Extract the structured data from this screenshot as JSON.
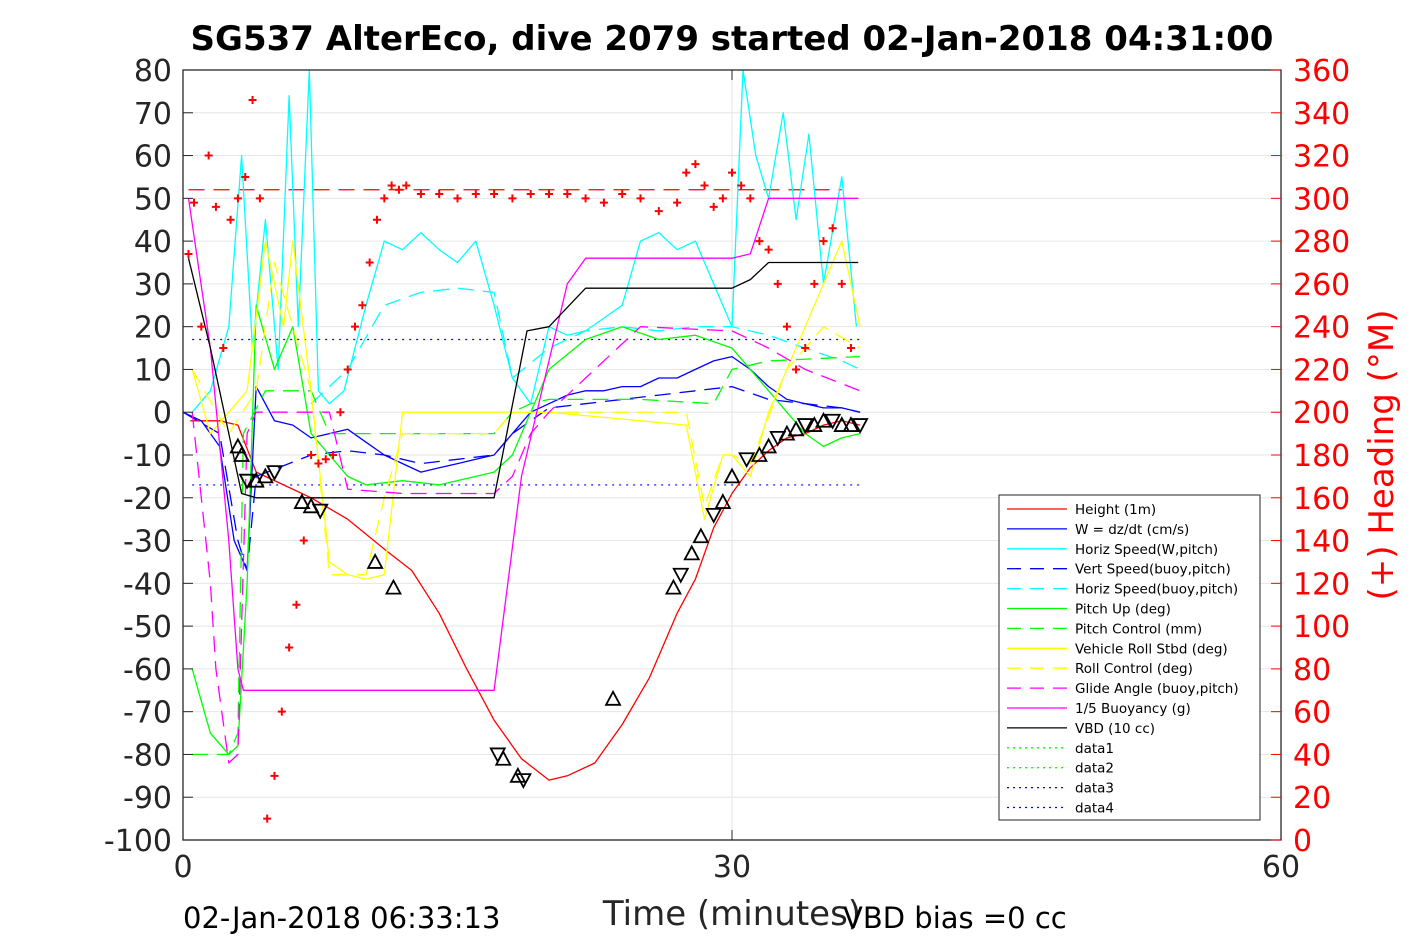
{
  "chart_data": {
    "type": "line",
    "title": "SG537 AlterEco, dive 2079 started 02-Jan-2018 04:31:00",
    "xlabel": "Time (minutes)",
    "ylabel_right": "(+) Heading (°M)",
    "xlim": [
      0,
      60
    ],
    "ylim_left": [
      -100,
      80
    ],
    "ylim_right": [
      0,
      360
    ],
    "x_ticks": [
      "0",
      "30",
      "60"
    ],
    "y_ticks_left": [
      "80",
      "70",
      "60",
      "50",
      "40",
      "30",
      "20",
      "10",
      "0",
      "-10",
      "-20",
      "-30",
      "-40",
      "-50",
      "-60",
      "-70",
      "-80",
      "-90",
      "-100"
    ],
    "y_ticks_right": [
      "360",
      "340",
      "320",
      "300",
      "280",
      "260",
      "240",
      "220",
      "200",
      "180",
      "160",
      "140",
      "120",
      "100",
      "80",
      "60",
      "40",
      "20",
      "0"
    ],
    "footer_left": "02-Jan-2018 06:33:13",
    "footer_right": "VBD bias =0 cc",
    "legend_position": "lower-right inside",
    "colors": {
      "red": "#ff0000",
      "blue": "#0000ff",
      "cyan": "#00ffff",
      "green": "#00ff00",
      "yellow": "#ffff00",
      "magenta": "#ff00ff",
      "black": "#000000",
      "heading_axis": "#ff0000"
    },
    "legend": [
      {
        "label": "Height (1m)",
        "color": "#ff0000",
        "style": "solid"
      },
      {
        "label": "W = dz/dt (cm/s)",
        "color": "#0000ff",
        "style": "solid"
      },
      {
        "label": "Horiz Speed(W,pitch)",
        "color": "#00ffff",
        "style": "solid"
      },
      {
        "label": "Vert Speed(buoy,pitch)",
        "color": "#0000ff",
        "style": "dashed"
      },
      {
        "label": "Horiz Speed(buoy,pitch)",
        "color": "#00ffff",
        "style": "dashed"
      },
      {
        "label": "Pitch Up (deg)",
        "color": "#00ff00",
        "style": "solid"
      },
      {
        "label": "Pitch Control (mm)",
        "color": "#00ff00",
        "style": "dashed"
      },
      {
        "label": "Vehicle Roll Stbd (deg)",
        "color": "#ffff00",
        "style": "solid"
      },
      {
        "label": "Roll Control (deg)",
        "color": "#ffff00",
        "style": "dashed"
      },
      {
        "label": "Glide Angle (buoy,pitch)",
        "color": "#ff00ff",
        "style": "dashed"
      },
      {
        "label": "1/5 Buoyancy (g)",
        "color": "#ff00ff",
        "style": "solid"
      },
      {
        "label": "VBD (10 cc)",
        "color": "#000000",
        "style": "solid"
      },
      {
        "label": "data1",
        "color": "#00ff00",
        "style": "dotted"
      },
      {
        "label": "data2",
        "color": "#00ff00",
        "style": "dotted"
      },
      {
        "label": "data3",
        "color": "#0000ff",
        "style": "dotted"
      },
      {
        "label": "data4",
        "color": "#0000ff",
        "style": "dotted"
      }
    ],
    "series": [
      {
        "name": "Height (1m)",
        "x": [
          0.4,
          2.0,
          3.0,
          4.0,
          5.5,
          7.0,
          9.0,
          11.0,
          12.5,
          14.0,
          15.5,
          17.0,
          18.5,
          20.0,
          21.0,
          22.5,
          24.0,
          25.5,
          27.0,
          28.0,
          29.0,
          30.0,
          31.0,
          32.0,
          33.0,
          34.0,
          35.0,
          36.0,
          37.0
        ],
        "y": [
          -2,
          -2,
          -3,
          -14,
          -17,
          -20,
          -25,
          -32,
          -37,
          -47,
          -60,
          -72,
          -81,
          -86,
          -85,
          -82,
          -73,
          -62,
          -47,
          -39,
          -27,
          -19,
          -13,
          -9,
          -6,
          -5,
          -3,
          -2,
          -3
        ]
      },
      {
        "name": "W = dz/dt (cm/s)",
        "x": [
          0,
          1,
          2,
          2.8,
          3.5,
          4,
          5,
          6,
          7,
          8,
          9,
          10,
          11,
          12,
          13,
          14,
          15,
          16,
          17,
          18,
          19,
          20,
          21,
          22,
          23,
          24,
          25,
          26,
          27,
          28,
          29,
          30,
          31,
          32,
          33,
          34,
          35,
          36,
          37
        ],
        "y": [
          0,
          -2,
          -8,
          -30,
          -37,
          6,
          -2,
          -3,
          -6,
          -5,
          -4,
          -7,
          -10,
          -12,
          -14,
          -13,
          -12,
          -11,
          -10,
          -5,
          0,
          2,
          4,
          5,
          5,
          6,
          6,
          8,
          8,
          10,
          12,
          13,
          10,
          6,
          3,
          2,
          1,
          1,
          0
        ]
      },
      {
        "name": "Horiz Speed(W,pitch)",
        "x": [
          0.5,
          1.5,
          2.5,
          3.2,
          3.8,
          4.5,
          5.2,
          5.8,
          6.3,
          6.9,
          7.4,
          8.0,
          8.8,
          10.0,
          11.0,
          12.0,
          13.0,
          14.0,
          15.0,
          16.0,
          17.0,
          18.0,
          19.0,
          20.0,
          21.0,
          22.0,
          23.0,
          24.0,
          25.0,
          26.0,
          27.0,
          28.0,
          29.0,
          30.0,
          30.6,
          31.3,
          32.0,
          32.8,
          33.5,
          34.2,
          35.0,
          36.0,
          36.8
        ],
        "y": [
          0,
          5,
          20,
          60,
          15,
          45,
          10,
          74,
          20,
          80,
          5,
          2,
          5,
          25,
          40,
          38,
          42,
          38,
          35,
          40,
          25,
          8,
          2,
          20,
          18,
          19,
          22,
          25,
          40,
          42,
          38,
          40,
          30,
          20,
          80,
          60,
          50,
          70,
          45,
          65,
          30,
          55,
          20
        ]
      },
      {
        "name": "Vert Speed(buoy,pitch)",
        "x": [
          0,
          2,
          3,
          3.5,
          4,
          7,
          9,
          11,
          13,
          15,
          17,
          18,
          20,
          22,
          24,
          26,
          28,
          30,
          32,
          34,
          36,
          37
        ],
        "y": [
          0,
          -5,
          -30,
          -37,
          -15,
          -10,
          -9,
          -10,
          -12,
          -11,
          -10,
          -5,
          1,
          2,
          3,
          4,
          5,
          6,
          3,
          2,
          1,
          0
        ]
      },
      {
        "name": "Horiz Speed(buoy,pitch)",
        "x": [
          7,
          9,
          11,
          13,
          15,
          17,
          18,
          20,
          22,
          24,
          26,
          28,
          30,
          32,
          34,
          36,
          37
        ],
        "y": [
          2,
          10,
          25,
          28,
          29,
          28,
          8,
          15,
          19,
          20,
          19,
          20,
          20,
          18,
          15,
          12,
          10
        ]
      },
      {
        "name": "Pitch Up (deg)",
        "x": [
          0.5,
          1.5,
          2.5,
          3.0,
          3.5,
          4.0,
          5.0,
          6.0,
          7.0,
          8.0,
          9.0,
          10.0,
          12.0,
          14.0,
          16.0,
          17.0,
          18.0,
          19.0,
          20.0,
          22.0,
          24.0,
          26.0,
          28.0,
          30.0,
          31.0,
          32.0,
          33.0,
          34.0,
          35.0,
          36.0,
          37.0
        ],
        "y": [
          -60,
          -75,
          -80,
          -78,
          -40,
          25,
          10,
          20,
          -5,
          -10,
          -15,
          -17,
          -16,
          -17,
          -15,
          -14,
          -10,
          0,
          10,
          17,
          20,
          17,
          18,
          15,
          10,
          5,
          0,
          -5,
          -8,
          -6,
          -5
        ]
      },
      {
        "name": "Pitch Control (mm)",
        "x": [
          0.5,
          2.5,
          3.0,
          3.3,
          4.5,
          7.0,
          8.0,
          12.0,
          17.0,
          18.0,
          19.0,
          20.0,
          25.0,
          29.0,
          30.0,
          32.0,
          37.0
        ],
        "y": [
          -80,
          -80,
          -75,
          -5,
          5,
          5,
          -5,
          -5,
          -5,
          0,
          2,
          3,
          3,
          2,
          10,
          12,
          13
        ]
      },
      {
        "name": "Vehicle Roll Stbd (deg)",
        "x": [
          0.5,
          1.5,
          2.5,
          3.5,
          4.5,
          5.5,
          6.0,
          7.0,
          8.0,
          9.0,
          10.0,
          11.0,
          12.0,
          15.0,
          17.0,
          18.0,
          20.0,
          25.0,
          27.5,
          28.5,
          29.5,
          30.0,
          31.0,
          32.0,
          33.0,
          34.0,
          35.0,
          36.0,
          37.0
        ],
        "y": [
          10,
          -5,
          0,
          5,
          40,
          20,
          40,
          5,
          -35,
          -38,
          -39,
          -38,
          0,
          0,
          0,
          0,
          0,
          -2,
          -3,
          -25,
          -10,
          -10,
          -15,
          0,
          10,
          20,
          30,
          40,
          20
        ]
      },
      {
        "name": "Roll Control (deg)",
        "x": [
          0.5,
          2.5,
          4.0,
          5.0,
          7.0,
          8.0,
          10.0,
          11.0,
          12.0,
          17.0,
          18.0,
          27.5,
          28.5,
          29.5,
          30.0,
          31.0,
          33.0,
          35.0,
          37.0
        ],
        "y": [
          10,
          -5,
          5,
          35,
          5,
          -38,
          -38,
          -20,
          -5,
          -5,
          0,
          0,
          -22,
          -10,
          -10,
          -12,
          10,
          20,
          15
        ]
      },
      {
        "name": "Glide Angle (buoy,pitch)",
        "x": [
          0.5,
          1.5,
          1.8,
          2.5,
          3.0,
          3.5,
          4.0,
          8.0,
          9.0,
          12.0,
          17.0,
          18.0,
          19.0,
          20.0,
          25.0,
          30.0,
          32.0,
          34.0,
          37.0
        ],
        "y": [
          0,
          -40,
          -60,
          -82,
          -80,
          -5,
          0,
          0,
          -18,
          -19,
          -19,
          -15,
          -5,
          0,
          20,
          19,
          15,
          10,
          5
        ]
      },
      {
        "name": "1/5 Buoyancy (g)",
        "x": [
          0.3,
          1.5,
          2.5,
          3.0,
          3.3,
          10.0,
          17.0,
          18.5,
          21.0,
          22.0,
          25.0,
          30.0,
          31.0,
          32.0,
          36.9
        ],
        "y": [
          50,
          15,
          -30,
          -60,
          -65,
          -65,
          -65,
          -15,
          30,
          36,
          36,
          36,
          37,
          50,
          50
        ]
      },
      {
        "name": "VBD (10 cc)",
        "x": [
          0.3,
          1.5,
          2.5,
          3.2,
          4.0,
          10.0,
          17.0,
          18.8,
          20.0,
          22.0,
          23.0,
          30.0,
          31.0,
          32.0,
          36.9
        ],
        "y": [
          36,
          15,
          -5,
          -19,
          -20,
          -20,
          -20,
          19,
          20,
          29,
          29,
          29,
          31,
          35,
          35
        ]
      }
    ],
    "heading_right_axis": {
      "name": "(+) Heading (°M)",
      "reference_line": 304,
      "x": [
        0.3,
        0.6,
        1.0,
        1.4,
        1.8,
        2.2,
        2.6,
        3.0,
        3.4,
        3.8,
        4.2,
        4.6,
        5.0,
        5.4,
        5.8,
        6.2,
        6.6,
        7.0,
        7.4,
        7.8,
        8.2,
        8.6,
        9.0,
        9.4,
        9.8,
        10.2,
        10.6,
        11.0,
        11.4,
        11.8,
        12.2,
        13.0,
        14.0,
        15.0,
        16.0,
        17.0,
        18.0,
        19.0,
        20.0,
        21.0,
        22.0,
        23.0,
        24.0,
        25.0,
        26.0,
        27.0,
        27.5,
        28.0,
        28.5,
        29.0,
        29.5,
        30.0,
        30.5,
        31.0,
        31.5,
        32.0,
        32.5,
        33.0,
        33.5,
        34.0,
        34.5,
        35.0,
        35.5,
        36.0,
        36.5
      ],
      "y": [
        274,
        298,
        240,
        320,
        296,
        230,
        290,
        300,
        310,
        346,
        300,
        10,
        30,
        60,
        90,
        110,
        140,
        180,
        176,
        178,
        180,
        200,
        220,
        240,
        250,
        270,
        290,
        300,
        306,
        304,
        306,
        302,
        302,
        300,
        302,
        302,
        300,
        302,
        302,
        302,
        300,
        298,
        302,
        300,
        294,
        298,
        312,
        316,
        306,
        296,
        300,
        312,
        306,
        300,
        280,
        276,
        260,
        240,
        220,
        230,
        260,
        280,
        286,
        260,
        230
      ]
    },
    "black_triangle_markers": {
      "x": [
        3.0,
        3.2,
        3.5,
        4.0,
        4.5,
        5.0,
        6.5,
        7.0,
        7.5,
        10.5,
        11.5,
        17.2,
        17.5,
        18.3,
        18.6,
        23.5,
        26.8,
        27.2,
        27.8,
        28.3,
        29.0,
        29.5,
        30.0,
        30.8,
        31.5,
        32.0,
        32.5,
        33.0,
        33.5,
        34.0,
        34.5,
        35.0,
        35.5,
        36.0,
        36.5,
        37.0
      ],
      "y": [
        -8,
        -10,
        -16,
        -16,
        -15,
        -14,
        -21,
        -22,
        -23,
        -35,
        -41,
        -80,
        -81,
        -85,
        -86,
        -67,
        -41,
        -38,
        -33,
        -29,
        -24,
        -21,
        -15,
        -11,
        -10,
        -8,
        -6,
        -5,
        -4,
        -3,
        -3,
        -2,
        -2,
        -3,
        -3,
        -3
      ]
    },
    "reference_lines": [
      {
        "name": "data1",
        "y": 17,
        "color": "#0000ff",
        "style": "dotted"
      },
      {
        "name": "data4",
        "y": -17,
        "color": "#0000ff",
        "style": "dotted"
      }
    ]
  }
}
